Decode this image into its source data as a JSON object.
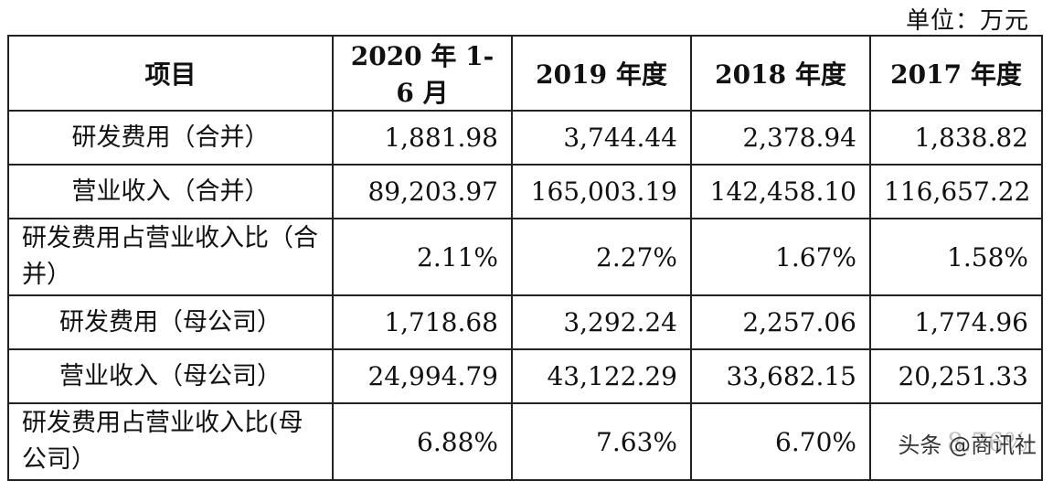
{
  "unit": "单位：万元",
  "headers": [
    "项目",
    "2020 年 1-6 月",
    "2019 年度",
    "2018 年度",
    "2017 年度"
  ],
  "rows": [
    {
      "label": "研发费用（合并）",
      "values": [
        "1,881.98",
        "3,744.44",
        "2,378.94",
        "1,838.82"
      ]
    },
    {
      "label": "营业收入（合并）",
      "values": [
        "89,203.97",
        "165,003.19",
        "142,458.10",
        "116,657.22"
      ]
    },
    {
      "label": "研发费用占营业收入比（合并）",
      "values": [
        "2.11%",
        "2.27%",
        "1.67%",
        "1.58%"
      ]
    },
    {
      "label": "研发费用（母公司）",
      "values": [
        "1,718.68",
        "3,292.24",
        "2,257.06",
        "1,774.96"
      ]
    },
    {
      "label": "营业收入（母公司）",
      "values": [
        "24,994.79",
        "43,122.29",
        "33,682.15",
        "20,251.33"
      ]
    },
    {
      "label": "研发费用占营业收入比(母公司）",
      "values": [
        "6.88%",
        "7.63%",
        "6.70%",
        "8.76%"
      ]
    }
  ],
  "watermark": "头条 @商讯社"
}
